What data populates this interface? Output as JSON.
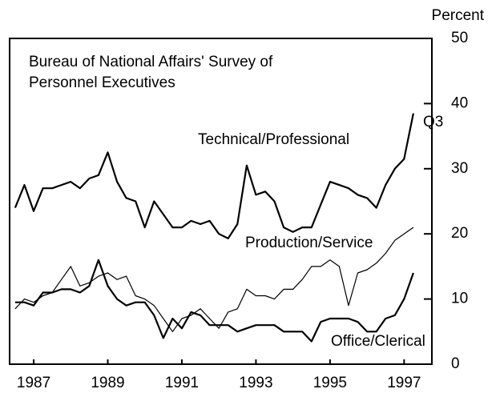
{
  "chart_data": {
    "type": "line",
    "title": [
      "Bureau of National Affairs' Survey of",
      "Personnel Executives"
    ],
    "y_axis_label": "Percent",
    "end_label": "Q3",
    "x": [
      1986.5,
      1986.75,
      1987,
      1987.25,
      1987.5,
      1987.75,
      1988,
      1988.25,
      1988.5,
      1988.75,
      1989,
      1989.25,
      1989.5,
      1989.75,
      1990,
      1990.25,
      1990.5,
      1990.75,
      1991,
      1991.25,
      1991.5,
      1991.75,
      1992,
      1992.25,
      1992.5,
      1992.75,
      1993,
      1993.25,
      1993.5,
      1993.75,
      1994,
      1994.25,
      1994.5,
      1994.75,
      1995,
      1995.25,
      1995.5,
      1995.75,
      1996,
      1996.25,
      1996.5,
      1996.75,
      1997,
      1997.25
    ],
    "series": [
      {
        "name": "Technical/Professional",
        "color": "#000000",
        "width": 2.2,
        "values": [
          24,
          27.5,
          23.5,
          27,
          27,
          27.5,
          28,
          27,
          28.5,
          29,
          32.5,
          28,
          25.5,
          25,
          21,
          25,
          23,
          21,
          21,
          22,
          21.5,
          22,
          20,
          19.3,
          21.5,
          30.5,
          26,
          26.5,
          25,
          21,
          20.3,
          21,
          21,
          24.5,
          28,
          27.5,
          27,
          26,
          25.5,
          24,
          27.5,
          30,
          31.5,
          38.5
        ]
      },
      {
        "name": "Production/Service",
        "color": "#000000",
        "width": 1.2,
        "values": [
          8.5,
          10,
          9.5,
          10.5,
          11,
          13,
          15,
          12,
          12.5,
          13.5,
          14,
          13,
          13.5,
          10.5,
          10,
          9,
          7,
          5,
          7,
          7.5,
          8.5,
          7,
          5.5,
          8,
          8.5,
          11.5,
          10.5,
          10.5,
          10,
          11.5,
          11.5,
          13,
          15,
          15,
          16,
          15,
          9,
          14,
          14.5,
          15.5,
          17,
          19,
          20,
          21
        ]
      },
      {
        "name": "Office/Clerical",
        "color": "#000000",
        "width": 2.2,
        "values": [
          9.5,
          9.5,
          9,
          11,
          11,
          11.5,
          11.5,
          11,
          12,
          16,
          12,
          10,
          9,
          9.5,
          9.5,
          7.5,
          4,
          7,
          5.5,
          8,
          7.5,
          6,
          6,
          6,
          5,
          5.5,
          6,
          6,
          6,
          5,
          5,
          5,
          3.5,
          6.5,
          7,
          7,
          7,
          6.5,
          5,
          5,
          7,
          7.5,
          10,
          14
        ]
      }
    ],
    "xlim": [
      1986.35,
      1997.75
    ],
    "xticks": [
      1987,
      1989,
      1991,
      1993,
      1995,
      1997
    ],
    "ylim": [
      0,
      50
    ],
    "yticks": [
      0,
      10,
      20,
      30,
      40,
      50
    ],
    "grid": false
  }
}
